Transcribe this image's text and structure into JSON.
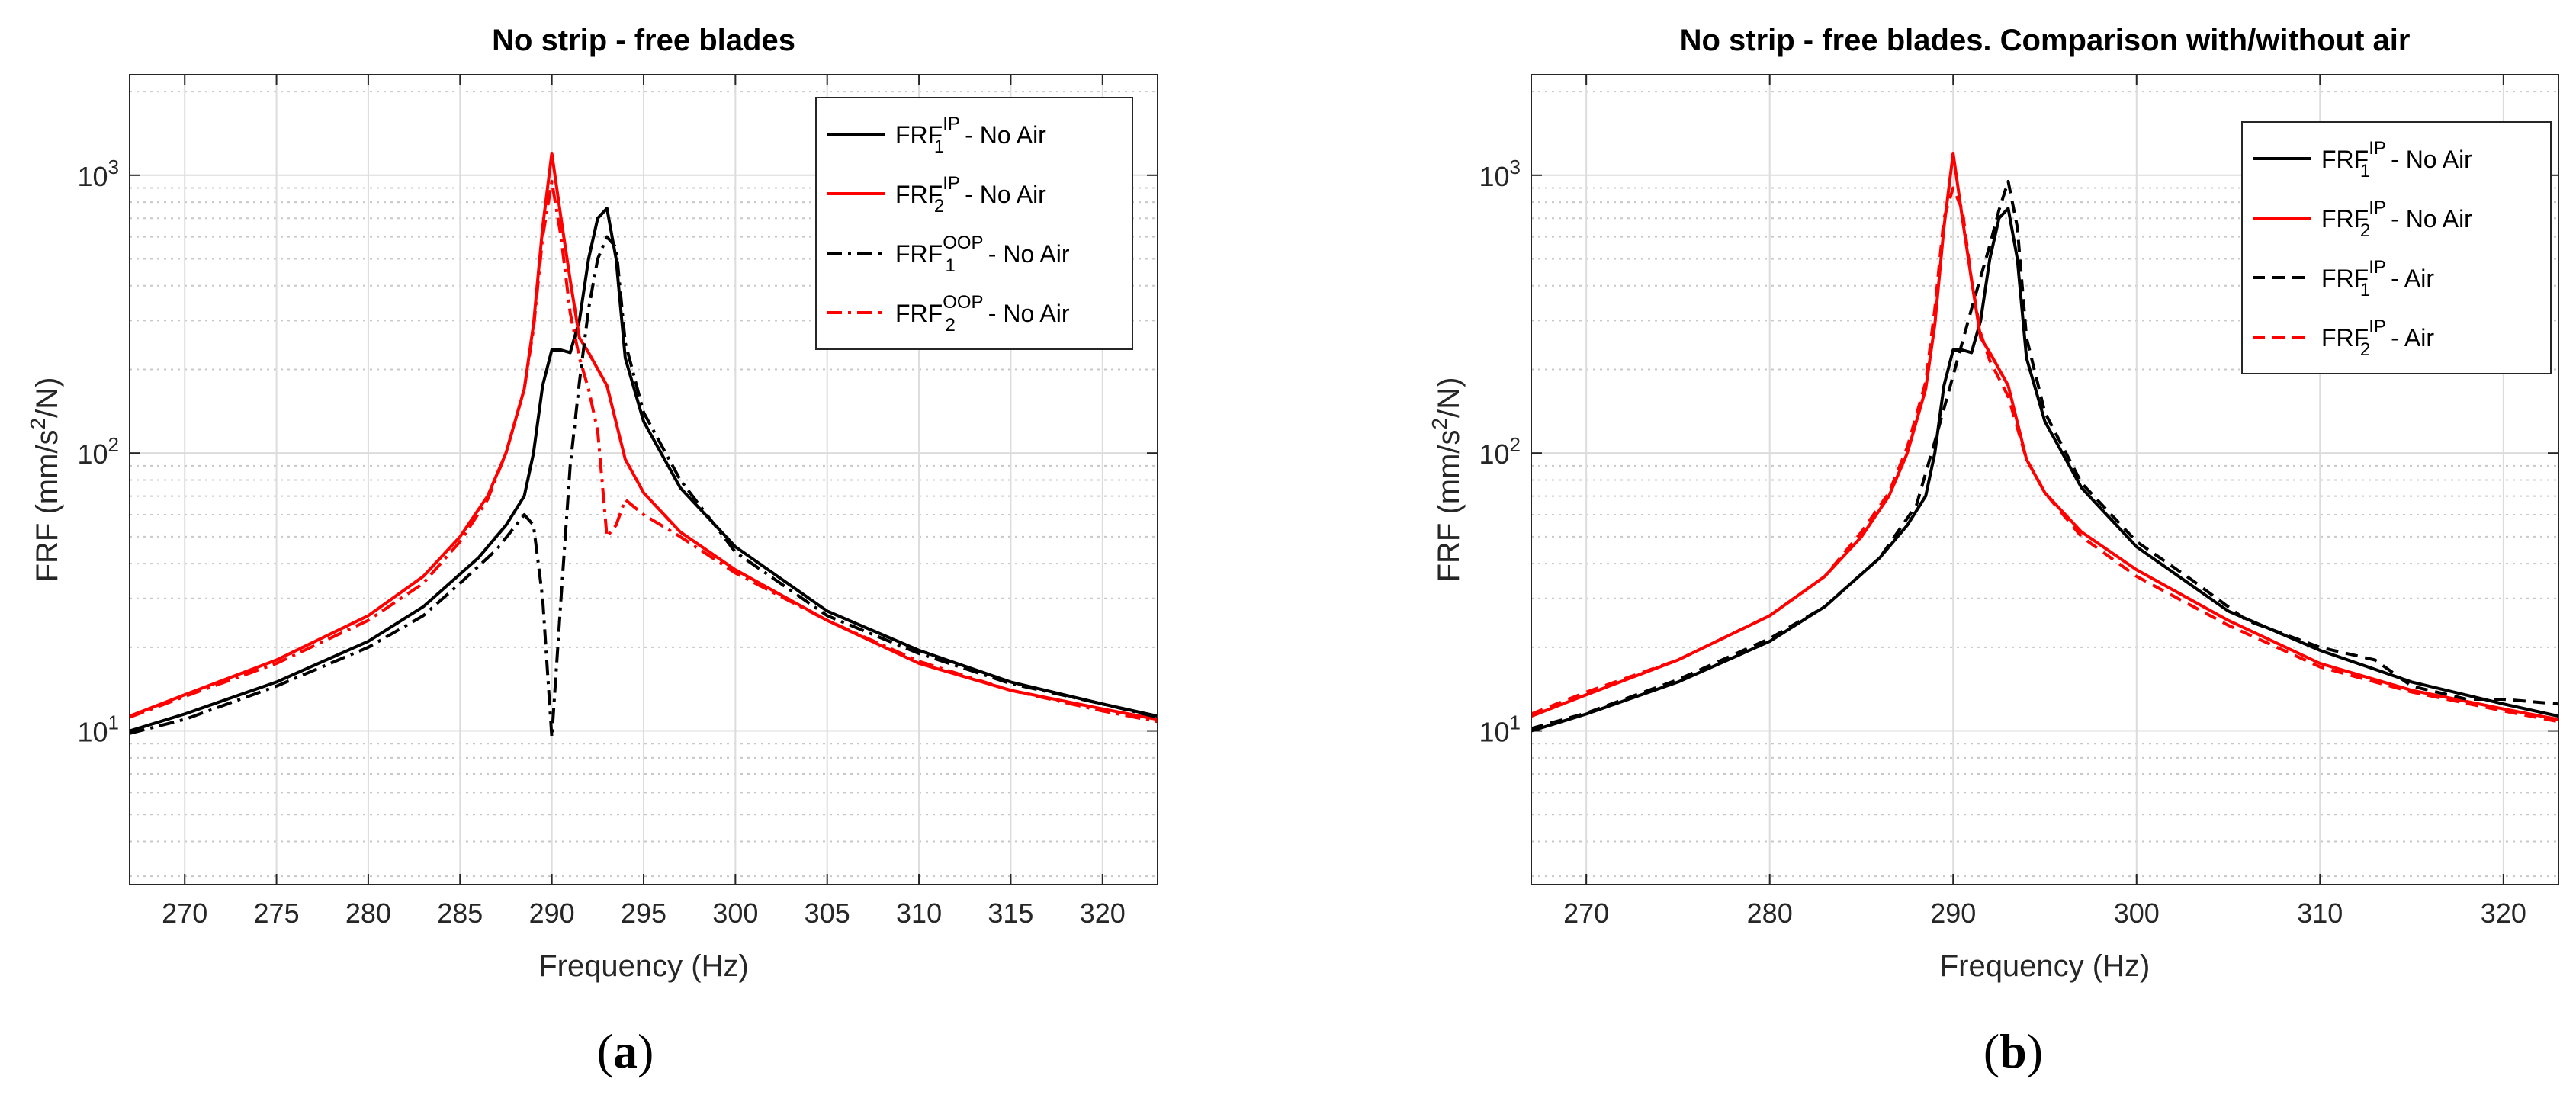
{
  "chart_data": [
    {
      "type": "line",
      "panel_label": "(a)",
      "title": "No strip - free blades",
      "xlabel": "Frequency (Hz)",
      "ylabel": "FRF (mm/s2/N)",
      "ylabel_parts": {
        "base": "FRF (mm/s",
        "sup": "2",
        "tail": "/N)"
      },
      "y_scale": "log",
      "xlim": [
        267,
        323
      ],
      "ylim": [
        2.8,
        2300
      ],
      "x_ticks": [
        270,
        275,
        280,
        285,
        290,
        295,
        300,
        305,
        310,
        315,
        320
      ],
      "y_ticks": [
        {
          "value": 10,
          "base": "10",
          "exp": "1"
        },
        {
          "value": 100,
          "base": "10",
          "exp": "2"
        },
        {
          "value": 1000,
          "base": "10",
          "exp": "3"
        }
      ],
      "grid": true,
      "legend_position": "top-right",
      "series": [
        {
          "name": "FRF1IP - No Air",
          "label": {
            "base": "FRF",
            "sub": "1",
            "sup": "IP",
            "tail": " - No Air"
          },
          "color": "#000000",
          "dash": "solid",
          "x": [
            267,
            270,
            275,
            280,
            283,
            286,
            287.5,
            288.5,
            289,
            289.5,
            290,
            290.5,
            291,
            291.5,
            292,
            292.5,
            293,
            293.5,
            294,
            295,
            297,
            300,
            305,
            310,
            315,
            320,
            323
          ],
          "y": [
            10,
            11.5,
            15,
            21,
            28,
            42,
            55,
            70,
            100,
            175,
            235,
            235,
            230,
            300,
            500,
            700,
            760,
            500,
            220,
            130,
            75,
            46,
            27,
            19.5,
            15,
            12.5,
            11.3
          ]
        },
        {
          "name": "FRF2IP - No Air",
          "label": {
            "base": "FRF",
            "sub": "2",
            "sup": "IP",
            "tail": " - No Air"
          },
          "color": "#ff0000",
          "dash": "solid",
          "x": [
            267,
            270,
            275,
            280,
            283,
            285,
            286.5,
            287.5,
            288.5,
            289,
            289.5,
            290,
            290.5,
            291,
            291.5,
            292,
            293,
            294,
            295,
            297,
            300,
            305,
            310,
            315,
            320,
            323
          ],
          "y": [
            11.3,
            13.5,
            18,
            26,
            36,
            50,
            70,
            100,
            170,
            290,
            650,
            1200,
            700,
            420,
            260,
            230,
            175,
            95,
            72,
            52,
            38,
            25,
            17.5,
            14,
            12,
            11
          ]
        },
        {
          "name": "FRF1OOP - No Air",
          "label": {
            "base": "FRF",
            "sub": "1",
            "sup": "OOP",
            "tail": " - No Air"
          },
          "color": "#000000",
          "dash": "dashdot",
          "x": [
            267,
            270,
            275,
            280,
            283,
            285,
            287,
            288.5,
            289,
            289.5,
            290,
            290.5,
            291,
            291.5,
            292,
            292.5,
            293,
            293.5,
            294,
            295,
            297,
            300,
            305,
            310,
            315,
            320,
            323
          ],
          "y": [
            9.8,
            11,
            14.5,
            20,
            26,
            34,
            45,
            60,
            55,
            30,
            9.5,
            30,
            90,
            180,
            330,
            500,
            600,
            550,
            250,
            140,
            80,
            44,
            26,
            19,
            14.8,
            12.5,
            11.2
          ]
        },
        {
          "name": "FRF2OOP - No Air",
          "label": {
            "base": "FRF",
            "sub": "2",
            "sup": "OOP",
            "tail": " - No Air"
          },
          "color": "#ff0000",
          "dash": "dashdot",
          "x": [
            267,
            270,
            275,
            280,
            283,
            285,
            286.5,
            287.5,
            288.5,
            289,
            289.5,
            290,
            290.5,
            291,
            291.5,
            292,
            292.5,
            293,
            293.5,
            294,
            295,
            297,
            300,
            305,
            310,
            315,
            320,
            323
          ],
          "y": [
            11.2,
            13.3,
            17.5,
            25,
            34,
            48,
            68,
            100,
            170,
            280,
            600,
            950,
            600,
            320,
            220,
            170,
            120,
            50,
            55,
            68,
            60,
            50,
            37,
            25,
            17.8,
            14,
            11.8,
            10.8
          ]
        }
      ]
    },
    {
      "type": "line",
      "panel_label": "(b)",
      "title": "No strip - free blades. Comparison with/without air",
      "xlabel": "Frequency (Hz)",
      "ylabel": "FRF (mm/s2/N)",
      "ylabel_parts": {
        "base": "FRF (mm/s",
        "sup": "2",
        "tail": "/N)"
      },
      "y_scale": "log",
      "xlim": [
        267,
        323
      ],
      "ylim": [
        2.8,
        2300
      ],
      "x_ticks": [
        270,
        280,
        290,
        300,
        310,
        320
      ],
      "y_ticks": [
        {
          "value": 10,
          "base": "10",
          "exp": "1"
        },
        {
          "value": 100,
          "base": "10",
          "exp": "2"
        },
        {
          "value": 1000,
          "base": "10",
          "exp": "3"
        }
      ],
      "grid": true,
      "legend_position": "top-right",
      "series": [
        {
          "name": "FRF1IP - No Air",
          "label": {
            "base": "FRF",
            "sub": "1",
            "sup": "IP",
            "tail": " - No Air"
          },
          "color": "#000000",
          "dash": "solid",
          "x": [
            267,
            270,
            275,
            280,
            283,
            286,
            287.5,
            288.5,
            289,
            289.5,
            290,
            290.5,
            291,
            291.5,
            292,
            292.5,
            293,
            293.5,
            294,
            295,
            297,
            300,
            305,
            310,
            315,
            320,
            323
          ],
          "y": [
            10,
            11.5,
            15,
            21,
            28,
            42,
            55,
            70,
            100,
            175,
            235,
            235,
            230,
            300,
            500,
            700,
            760,
            500,
            220,
            130,
            75,
            46,
            27,
            19.5,
            15,
            12.5,
            11.3
          ]
        },
        {
          "name": "FRF2IP - No Air",
          "label": {
            "base": "FRF",
            "sub": "2",
            "sup": "IP",
            "tail": " - No Air"
          },
          "color": "#ff0000",
          "dash": "solid",
          "x": [
            267,
            270,
            275,
            280,
            283,
            285,
            286.5,
            287.5,
            288.5,
            289,
            289.5,
            290,
            290.5,
            291,
            291.5,
            292,
            293,
            294,
            295,
            297,
            300,
            305,
            310,
            315,
            320,
            323
          ],
          "y": [
            11.3,
            13.5,
            18,
            26,
            36,
            50,
            70,
            100,
            170,
            290,
            650,
            1200,
            700,
            420,
            260,
            230,
            175,
            95,
            72,
            52,
            38,
            25,
            17.5,
            14,
            12,
            11
          ]
        },
        {
          "name": "FRF1IP - Air",
          "label": {
            "base": "FRF",
            "sub": "1",
            "sup": "IP",
            "tail": " - Air"
          },
          "color": "#000000",
          "dash": "dashed",
          "x": [
            267,
            270,
            275,
            280,
            283,
            286,
            288,
            289,
            290,
            291,
            292,
            292.5,
            293,
            293.5,
            294,
            295,
            297,
            300,
            303,
            306,
            310,
            313,
            315,
            318,
            320,
            323
          ],
          "y": [
            10.2,
            11.6,
            15.3,
            21.5,
            28,
            42,
            65,
            110,
            190,
            330,
            560,
            750,
            950,
            650,
            260,
            140,
            78,
            48,
            35,
            25,
            20,
            18,
            14.5,
            13,
            13,
            12.5
          ]
        },
        {
          "name": "FRF2IP - Air",
          "label": {
            "base": "FRF",
            "sub": "2",
            "sup": "IP",
            "tail": " - Air"
          },
          "color": "#ff0000",
          "dash": "dashed",
          "x": [
            267,
            270,
            275,
            280,
            283,
            285,
            286.5,
            287.5,
            288.5,
            289,
            289.5,
            290,
            290.5,
            291,
            291.5,
            292,
            293,
            294,
            295,
            297,
            300,
            305,
            310,
            315,
            320,
            323
          ],
          "y": [
            11.5,
            13.8,
            18,
            26,
            36,
            52,
            72,
            105,
            180,
            330,
            700,
            900,
            750,
            420,
            270,
            215,
            160,
            95,
            72,
            50,
            36,
            24,
            17,
            13.8,
            11.8,
            10.8
          ]
        }
      ]
    }
  ]
}
